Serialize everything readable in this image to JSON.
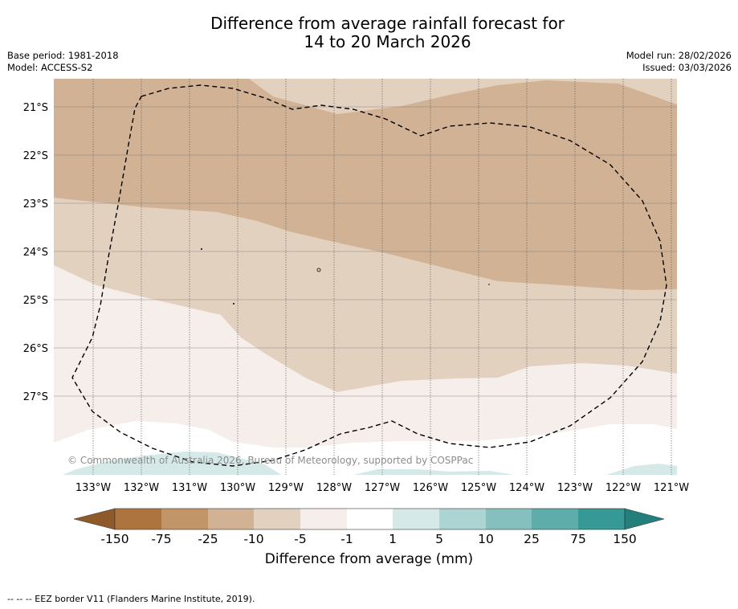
{
  "header": {
    "title_line1": "Difference from average rainfall forecast for",
    "title_line2": "14 to 20 March 2026",
    "base_period": "Base period: 1981-2018",
    "model": "Model: ACCESS-S2",
    "model_run": "Model run: 28/02/2026",
    "issued": "Issued: 03/03/2026"
  },
  "map": {
    "lon_labels": [
      "133°W",
      "132°W",
      "131°W",
      "130°W",
      "129°W",
      "128°W",
      "127°W",
      "126°W",
      "125°W",
      "124°W",
      "123°W",
      "122°W",
      "121°W"
    ],
    "lat_labels": [
      "21°S",
      "22°S",
      "23°S",
      "24°S",
      "25°S",
      "26°S",
      "27°S"
    ],
    "copyright": "© Commonwealth of Australia 2026, Bureau of Meteorology, supported by COSPPac",
    "colors": {
      "dry_light": "#d1b294",
      "dry_lighter": "#e3d1c0",
      "dry_faint": "#f5eeea",
      "neutral": "#ffffff",
      "wet_faint": "#d5eae8",
      "eez_line": "#000000"
    }
  },
  "legend": {
    "tick_labels": [
      "-150",
      "-75",
      "-25",
      "-10",
      "-5",
      "-1",
      "1",
      "5",
      "10",
      "25",
      "75",
      "150"
    ],
    "colors": [
      "#8f5a2a",
      "#ae7440",
      "#c29569",
      "#d1b294",
      "#e3d1c0",
      "#f5eeea",
      "#ffffff",
      "#d5eae8",
      "#acd4d2",
      "#86c0be",
      "#5eadab",
      "#369996",
      "#227f7c"
    ],
    "axis_label": "Difference from average (mm)"
  },
  "footnote": "-- -- -- EEZ border V11 (Flanders Marine Institute, 2019)."
}
